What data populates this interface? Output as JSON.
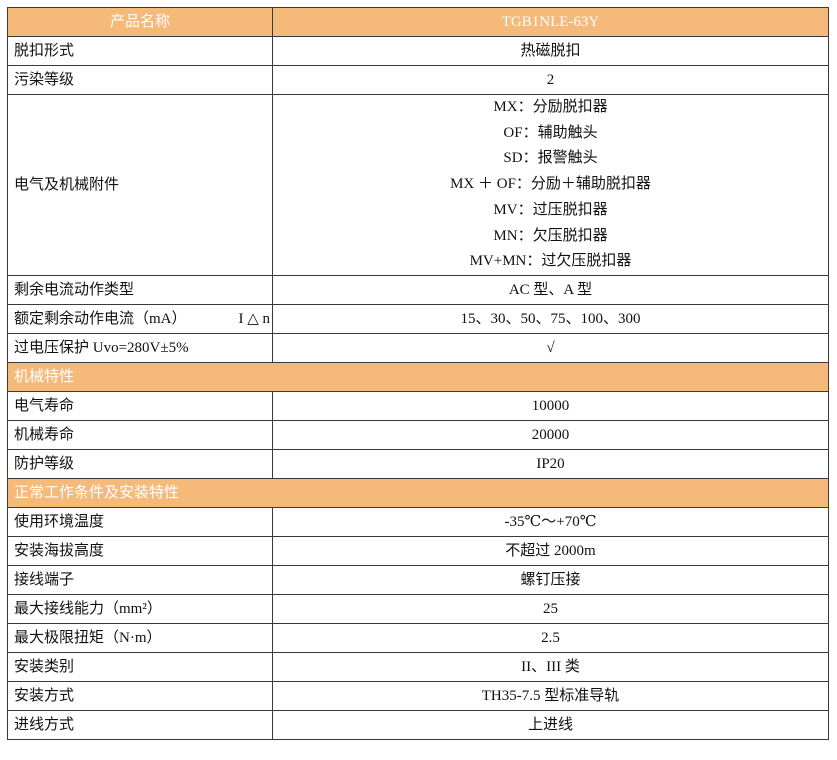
{
  "header": {
    "label": "产品名称",
    "value": "TGB1NLE-63Y"
  },
  "colors": {
    "header_bg": "#f5b97a",
    "border": "#3a3a3a"
  },
  "rows_a": [
    {
      "label": "脱扣形式",
      "value": "热磁脱扣"
    },
    {
      "label": "污染等级",
      "value": "2"
    }
  ],
  "accessories": {
    "label": "电气及机械附件",
    "values": [
      "MX：分励脱扣器",
      "OF：辅助触头",
      "SD：报警触头",
      "MX ＋ OF：分励＋辅助脱扣器",
      "MV：过压脱扣器",
      "MN：欠压脱扣器",
      "MV+MN：过欠压脱扣器"
    ]
  },
  "rows_b": [
    {
      "label": "剩余电流动作类型",
      "value": "AC 型、A 型"
    }
  ],
  "rated_current": {
    "label": "额定剩余动作电流（mA）",
    "symbol": "I △ n",
    "value": "15、30、50、75、100、300"
  },
  "overvoltage": {
    "label": "过电压保护 Uvo=280V±5%",
    "value": "√"
  },
  "section_mech": {
    "title": "机械特性",
    "rows": [
      {
        "label": "电气寿命",
        "value": "10000"
      },
      {
        "label": "机械寿命",
        "value": "20000"
      },
      {
        "label": "防护等级",
        "value": "IP20"
      }
    ]
  },
  "section_install": {
    "title": "正常工作条件及安装特性",
    "rows": [
      {
        "label": "使用环境温度",
        "value": "-35℃～+70℃"
      },
      {
        "label": "安装海拔高度",
        "value": "不超过 2000m"
      },
      {
        "label": "接线端子",
        "value": "螺钉压接"
      },
      {
        "label": "最大接线能力（mm²）",
        "value": "25"
      },
      {
        "label": "最大极限扭矩（N·m）",
        "value": "2.5"
      },
      {
        "label": "安装类别",
        "value": "II、III 类"
      },
      {
        "label": "安装方式",
        "value": "TH35-7.5 型标准导轨"
      },
      {
        "label": "进线方式",
        "value": "上进线"
      }
    ]
  }
}
